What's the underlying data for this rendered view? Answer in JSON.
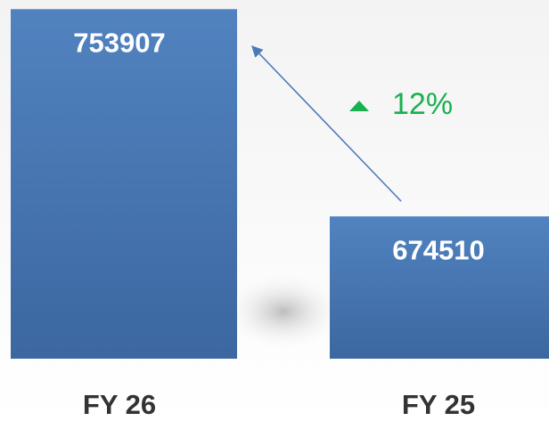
{
  "chart_data": {
    "type": "bar",
    "categories": [
      "FY 26",
      "FY 25"
    ],
    "values": [
      753907,
      674510
    ],
    "color": "#4a7ab8",
    "ylim": [
      620000,
      754000
    ],
    "change_label": "12%",
    "change_color": "#19b050"
  }
}
